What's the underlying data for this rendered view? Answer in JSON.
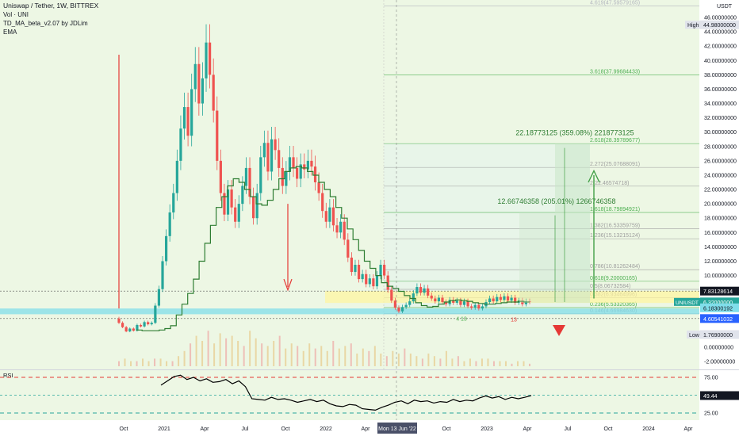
{
  "legend": {
    "symbol": "Uniswap / Tether, 1W, BITTREX",
    "volume": "Vol · UNI",
    "indicator": "TD_MA_beta_v2.07 by JDLim",
    "ema": "EMA"
  },
  "axis": {
    "currency": "USDT",
    "high_tag": "High",
    "high_value": "44.98000000",
    "low_tag": "Low",
    "low_value": "1.76900000",
    "symbol_tag": "UNIUSDT",
    "price_tag": "6.32000000",
    "countdown": "1d 5h",
    "tag_upper": "7.83128614",
    "tag_mid": "6.18300192",
    "tag_lower": "4.60541032",
    "crosshair_date": "Mon 13 Jun '22",
    "rsi_label": "RSI",
    "rsi_value": "49.44"
  },
  "annotations": {
    "measure_top": "22.18773125 (359.08%) 2218773125",
    "measure_mid": "12.66746358 (205.01%) 1266746358",
    "label_4_13": "4 13",
    "label_13": "13"
  },
  "fib_levels": [
    {
      "label": "4.619(47.59579165)",
      "price": 47.6,
      "color": "#b2b5be"
    },
    {
      "label": "3.618(37.99684433)",
      "price": 38.0,
      "color": "#4caf50"
    },
    {
      "label": "2.618(28.39789677)",
      "price": 28.4,
      "color": "#4caf50"
    },
    {
      "label": "2.272(25.07688091)",
      "price": 25.08,
      "color": "#9e9e9e"
    },
    {
      "label": "2(22.46574718)",
      "price": 22.47,
      "color": "#9e9e9e"
    },
    {
      "label": "1.618(18.79894921)",
      "price": 18.8,
      "color": "#4caf50"
    },
    {
      "label": "1.382(16.53359759)",
      "price": 16.53,
      "color": "#9e9e9e"
    },
    {
      "label": "1.236(15.13215124)",
      "price": 15.13,
      "color": "#9e9e9e"
    },
    {
      "label": "0.786(10.81262484)",
      "price": 10.81,
      "color": "#9e9e9e"
    },
    {
      "label": "0.618(9.20000165)",
      "price": 9.2,
      "color": "#4caf50"
    },
    {
      "label": "0.5(8.06732584)",
      "price": 8.07,
      "color": "#9e9e9e"
    },
    {
      "label": "0.382(6.93464996)",
      "price": 6.93,
      "color": "#9e9e9e"
    },
    {
      "label": "0.236(5.53320365)",
      "price": 5.53,
      "color": "#4caf50"
    },
    {
      "label": "0.146(4.66984630)",
      "price": 4.67,
      "color": "#9e9e9e"
    }
  ],
  "colors": {
    "bull": "#26a69a",
    "bear": "#ef5350",
    "ema": "#2e7d32",
    "panel": "#edf7e4",
    "fib_fill": "#e8f5e9",
    "yellow_band": "#fff59d",
    "cyan_band": "#80deea",
    "rsi_line": "#000000",
    "rsi_dash": "#e53935",
    "rsi_mid_dash": "#26a69a",
    "arrow_green": "#43a047",
    "arrow_red": "#e53935"
  },
  "chart_data": {
    "type": "candlestick",
    "interval": "1W",
    "price_axis": {
      "ticks": [
        "46.00000000",
        "44.00000000",
        "42.00000000",
        "40.00000000",
        "38.00000000",
        "36.00000000",
        "34.00000000",
        "32.00000000",
        "30.00000000",
        "28.00000000",
        "26.00000000",
        "24.00000000",
        "22.00000000",
        "20.00000000",
        "18.00000000",
        "16.00000000",
        "14.00000000",
        "12.00000000",
        "10.00000000",
        "8.00000000",
        "6.00000000",
        "4.00000000",
        "2.00000000",
        "0.00000000",
        "-2.00000000"
      ],
      "range": [
        -3,
        49
      ]
    },
    "time_axis": {
      "labels": [
        "Oct",
        "2021",
        "Apr",
        "Jul",
        "Oct",
        "2022",
        "Apr",
        "Jul",
        "Oct",
        "2023",
        "Apr",
        "Jul",
        "Oct",
        "2024",
        "Apr"
      ]
    },
    "rsi_axis": {
      "ticks": [
        "75.00",
        "25.00"
      ],
      "range": [
        15,
        85
      ]
    },
    "series": [
      {
        "name": "UNIUSDT",
        "values": [
          [
            4.0,
            3.4
          ],
          [
            3.4,
            2.8
          ],
          [
            2.8,
            2.2
          ],
          [
            2.2,
            2.6
          ],
          [
            2.6,
            2.3
          ],
          [
            2.3,
            3.1
          ],
          [
            3.1,
            2.9
          ],
          [
            2.9,
            3.5
          ],
          [
            3.5,
            3.2
          ],
          [
            3.2,
            3.4
          ],
          [
            3.4,
            5.8
          ],
          [
            5.8,
            8.1
          ],
          [
            8.1,
            12.0
          ],
          [
            12.0,
            15.5
          ],
          [
            15.5,
            18.8
          ],
          [
            18.8,
            21.5
          ],
          [
            21.5,
            26.0
          ],
          [
            26.0,
            30.5
          ],
          [
            30.5,
            33.5
          ],
          [
            33.5,
            29.5
          ],
          [
            29.5,
            36.0
          ],
          [
            36.0,
            39.5
          ],
          [
            39.5,
            34.0
          ],
          [
            34.0,
            37.5
          ],
          [
            37.5,
            42.5
          ],
          [
            42.5,
            38.0
          ],
          [
            38.0,
            33.0
          ],
          [
            33.0,
            26.0
          ],
          [
            26.0,
            21.5
          ],
          [
            21.5,
            18.5
          ],
          [
            18.5,
            22.0
          ],
          [
            22.0,
            19.5
          ],
          [
            19.5,
            17.5
          ],
          [
            17.5,
            20.0
          ],
          [
            20.0,
            22.5
          ],
          [
            22.5,
            25.0
          ],
          [
            25.0,
            21.0
          ],
          [
            21.0,
            18.0
          ],
          [
            18.0,
            21.5
          ],
          [
            21.5,
            26.5
          ],
          [
            26.5,
            28.5
          ],
          [
            28.5,
            24.5
          ],
          [
            24.5,
            29.0
          ],
          [
            29.0,
            27.5
          ],
          [
            27.5,
            25.0
          ],
          [
            25.0,
            22.5
          ],
          [
            22.5,
            24.5
          ],
          [
            24.5,
            26.5
          ],
          [
            26.5,
            25.0
          ],
          [
            25.0,
            23.5
          ],
          [
            23.5,
            25.5
          ],
          [
            25.5,
            24.8
          ],
          [
            24.8,
            26.0
          ],
          [
            26.0,
            25.2
          ],
          [
            25.2,
            23.0
          ],
          [
            23.0,
            21.5
          ],
          [
            21.5,
            19.0
          ],
          [
            19.0,
            17.5
          ],
          [
            17.5,
            19.5
          ],
          [
            19.5,
            17.0
          ],
          [
            17.0,
            16.0
          ],
          [
            16.0,
            17.5
          ],
          [
            17.5,
            15.0
          ],
          [
            15.0,
            12.5
          ],
          [
            12.5,
            10.5
          ],
          [
            10.5,
            11.5
          ],
          [
            11.5,
            9.5
          ],
          [
            9.5,
            10.2
          ],
          [
            10.2,
            8.8
          ],
          [
            8.8,
            9.6
          ],
          [
            9.6,
            8.5
          ],
          [
            8.5,
            10.0
          ],
          [
            10.0,
            11.5
          ],
          [
            11.5,
            10.0
          ],
          [
            10.0,
            8.0
          ],
          [
            8.0,
            6.5
          ],
          [
            6.5,
            5.5
          ],
          [
            5.5,
            5.0
          ],
          [
            5.0,
            5.6
          ],
          [
            5.6,
            5.9
          ],
          [
            5.9,
            6.4
          ],
          [
            6.4,
            7.5
          ],
          [
            7.5,
            8.4
          ],
          [
            8.4,
            7.6
          ],
          [
            7.6,
            8.2
          ],
          [
            8.2,
            7.2
          ],
          [
            7.2,
            6.8
          ],
          [
            6.8,
            6.4
          ],
          [
            6.4,
            6.9
          ],
          [
            6.9,
            6.3
          ],
          [
            6.3,
            6.0
          ],
          [
            6.0,
            6.6
          ],
          [
            6.6,
            6.2
          ],
          [
            6.2,
            6.5
          ],
          [
            6.5,
            5.9
          ],
          [
            5.9,
            6.4
          ],
          [
            6.4,
            5.7
          ],
          [
            5.7,
            5.5
          ],
          [
            5.5,
            5.9
          ],
          [
            5.9,
            5.4
          ],
          [
            5.4,
            5.7
          ],
          [
            5.7,
            6.3
          ],
          [
            6.3,
            6.8
          ],
          [
            6.8,
            6.4
          ],
          [
            6.4,
            7.0
          ],
          [
            7.0,
            6.6
          ],
          [
            6.6,
            7.1
          ],
          [
            7.1,
            6.5
          ],
          [
            6.5,
            6.9
          ],
          [
            6.9,
            6.2
          ],
          [
            6.2,
            6.5
          ],
          [
            6.5,
            6.0
          ],
          [
            6.0,
            6.4
          ],
          [
            6.4,
            6.32
          ]
        ]
      },
      {
        "name": "EMA",
        "values": [
          2.4,
          2.3,
          2.3,
          2.3,
          2.4,
          2.6,
          3.0,
          4.5,
          6.0,
          7.5,
          9.5,
          12.0,
          14.5,
          17.0,
          19.5,
          21.0,
          22.5,
          23.5,
          23.0,
          22.0,
          21.0,
          20.0,
          19.8,
          20.5,
          22.0,
          23.5,
          24.5,
          25.0,
          25.2,
          25.0,
          24.5,
          24.0,
          23.0,
          22.0,
          21.0,
          19.5,
          18.0,
          16.5,
          15.0,
          13.5,
          12.0,
          11.0,
          10.0,
          9.0,
          8.5,
          8.2,
          7.8,
          7.2,
          6.8,
          6.2,
          5.8,
          5.6,
          5.7,
          6.0,
          6.3,
          6.5,
          6.6,
          6.5,
          6.4,
          6.2,
          6.1,
          6.0,
          6.0,
          6.1,
          6.2,
          6.3,
          6.3,
          6.4,
          6.3,
          6.3
        ]
      },
      {
        "name": "RSI",
        "values": [
          64,
          70,
          76,
          78,
          72,
          75,
          70,
          73,
          68,
          69,
          72,
          66,
          70,
          62,
          45,
          44,
          43,
          47,
          44,
          45,
          43,
          40,
          42,
          44,
          41,
          43,
          38,
          35,
          34,
          37,
          36,
          31,
          30,
          29,
          33,
          36,
          40,
          42,
          38,
          43,
          41,
          42,
          39,
          41,
          40,
          44,
          41,
          43,
          42,
          46,
          49,
          46,
          48,
          44,
          47,
          45,
          47,
          49.44
        ]
      },
      {
        "name": "Vol",
        "values": [
          2,
          3,
          2,
          2,
          3,
          2,
          3,
          3,
          2,
          2,
          4,
          6,
          9,
          12,
          10,
          14,
          9,
          13,
          11,
          12,
          10,
          8,
          14,
          11,
          9,
          8,
          10,
          12,
          7,
          9,
          8,
          6,
          9,
          7,
          8,
          6,
          10,
          7,
          8,
          9,
          5,
          7,
          6,
          8,
          5,
          4,
          6,
          5,
          7,
          5,
          4,
          3,
          5,
          4,
          3,
          6,
          3,
          4,
          2,
          3,
          2,
          3,
          3,
          2,
          2,
          2,
          1,
          2,
          2,
          1
        ]
      }
    ]
  }
}
